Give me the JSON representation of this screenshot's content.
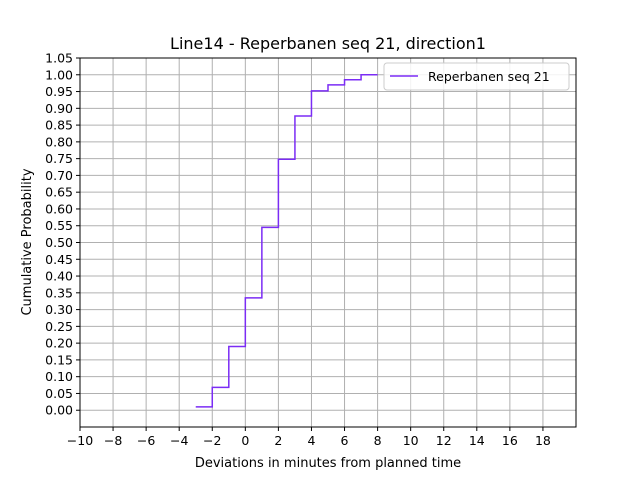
{
  "chart_data": {
    "type": "line",
    "drawstyle": "steps-post",
    "title": "Line14 - Reperbanen seq 21, direction1",
    "xlabel": "Deviations in minutes from planned time",
    "ylabel": "Cumulative Probability",
    "xlim": [
      -10,
      20
    ],
    "ylim": [
      -0.05,
      1.05
    ],
    "xticks": [
      -10,
      -8,
      -6,
      -4,
      -2,
      0,
      2,
      4,
      6,
      8,
      10,
      12,
      14,
      16,
      18
    ],
    "xtick_labels": [
      "−10",
      "−8",
      "−6",
      "−4",
      "−2",
      "0",
      "2",
      "4",
      "6",
      "8",
      "10",
      "12",
      "14",
      "16",
      "18"
    ],
    "yticks": [
      0.0,
      0.05,
      0.1,
      0.15,
      0.2,
      0.25,
      0.3,
      0.35,
      0.4,
      0.45,
      0.5,
      0.55,
      0.6,
      0.65,
      0.7,
      0.75,
      0.8,
      0.85,
      0.9,
      0.95,
      1.0,
      1.05
    ],
    "ytick_labels": [
      "0.00",
      "0.05",
      "0.10",
      "0.15",
      "0.20",
      "0.25",
      "0.30",
      "0.35",
      "0.40",
      "0.45",
      "0.50",
      "0.55",
      "0.60",
      "0.65",
      "0.70",
      "0.75",
      "0.80",
      "0.85",
      "0.90",
      "0.95",
      "1.00",
      "1.05"
    ],
    "grid": true,
    "legend_position": "top-right",
    "series": [
      {
        "name": "Reperbanen seq 21",
        "color": "#7b2cf5",
        "x": [
          -3,
          -2,
          -1,
          0,
          1,
          2,
          3,
          4,
          5,
          6,
          7,
          8
        ],
        "y": [
          0.01,
          0.068,
          0.19,
          0.335,
          0.545,
          0.748,
          0.877,
          0.952,
          0.97,
          0.985,
          1.0,
          1.0
        ]
      }
    ]
  }
}
